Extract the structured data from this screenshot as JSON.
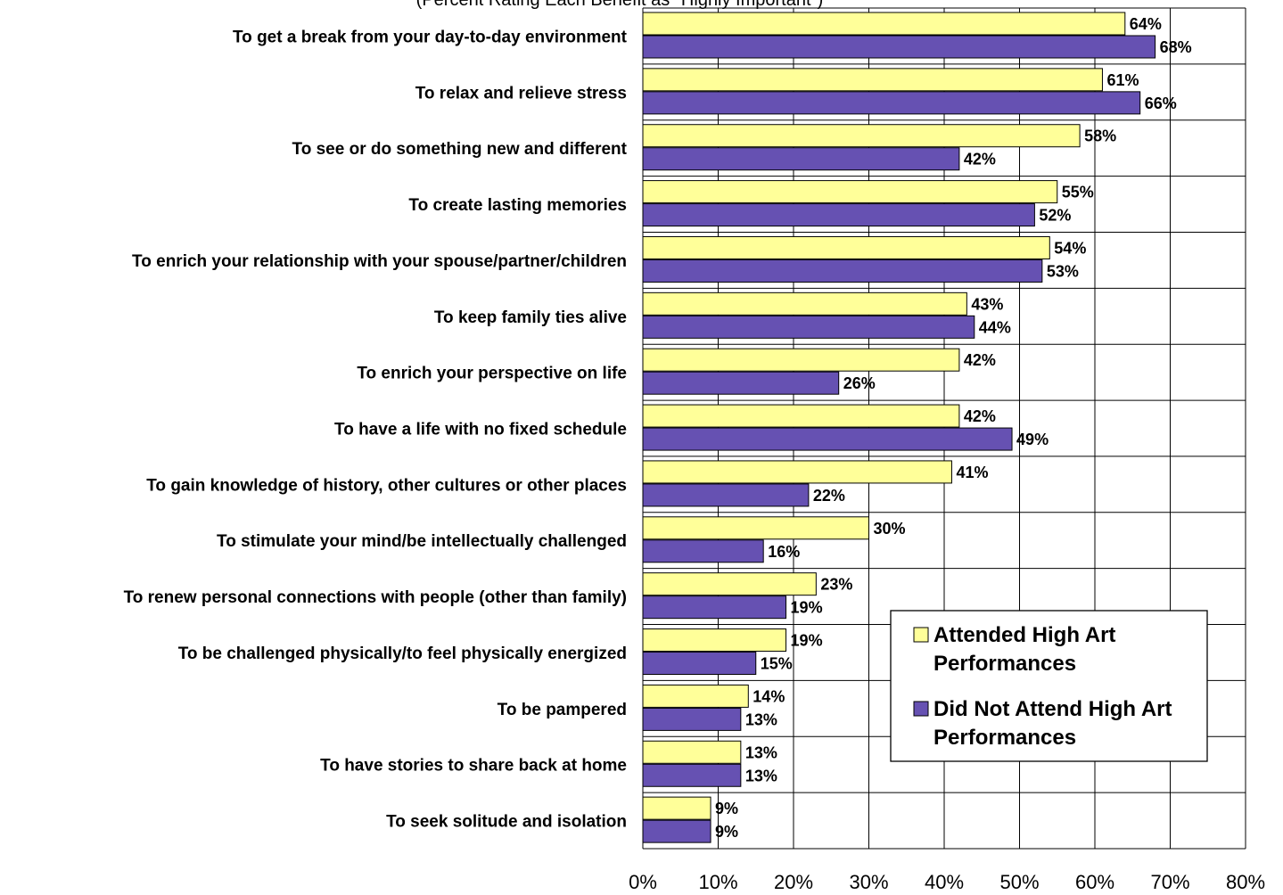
{
  "chart_data": {
    "type": "bar",
    "orientation": "horizontal",
    "subtitle": "(Percent Rating Each Benefit as \"Highly Important\")",
    "categories": [
      "To get a break from your day-to-day environment",
      "To relax and relieve stress",
      "To see or do something new and different",
      "To create lasting memories",
      "To enrich your relationship with your spouse/partner/children",
      "To keep family ties alive",
      "To enrich your perspective on life",
      "To have a life with no fixed schedule",
      "To gain knowledge of history, other cultures or other places",
      "To stimulate your mind/be intellectually challenged",
      "To renew personal connections with people (other than family)",
      "To be challenged physically/to feel physically energized",
      "To be pampered",
      "To have stories to share back at home",
      "To seek solitude and isolation"
    ],
    "series": [
      {
        "name": "Attended High Art Performances",
        "color": "#FFFF99",
        "values": [
          64,
          61,
          58,
          55,
          54,
          43,
          42,
          42,
          41,
          30,
          23,
          19,
          14,
          13,
          9
        ],
        "labels": [
          "64%",
          "61%",
          "58%",
          "55%",
          "54%",
          "43%",
          "42%",
          "42%",
          "41%",
          "30%",
          "23%",
          "19%",
          "14%",
          "13%",
          "9%"
        ]
      },
      {
        "name": "Did Not Attend High Art Performances",
        "color": "#6651B2",
        "values": [
          68,
          66,
          42,
          52,
          53,
          44,
          26,
          49,
          22,
          16,
          19,
          15,
          13,
          13,
          9
        ],
        "labels": [
          "68%",
          "66%",
          "42%",
          "52%",
          "53%",
          "44%",
          "26%",
          "49%",
          "22%",
          "16%",
          "19%",
          "15%",
          "13%",
          "13%",
          "9%"
        ]
      }
    ],
    "xlim": [
      0,
      80
    ],
    "xticks": [
      "0%",
      "10%",
      "20%",
      "30%",
      "40%",
      "50%",
      "60%",
      "70%",
      "80%"
    ],
    "grid": true,
    "legend_position": "bottom-right",
    "legend": {
      "entries": [
        {
          "line1": "Attended High Art",
          "line2": "Performances"
        },
        {
          "line1": "Did Not Attend High Art",
          "line2": "Performances"
        }
      ]
    }
  }
}
